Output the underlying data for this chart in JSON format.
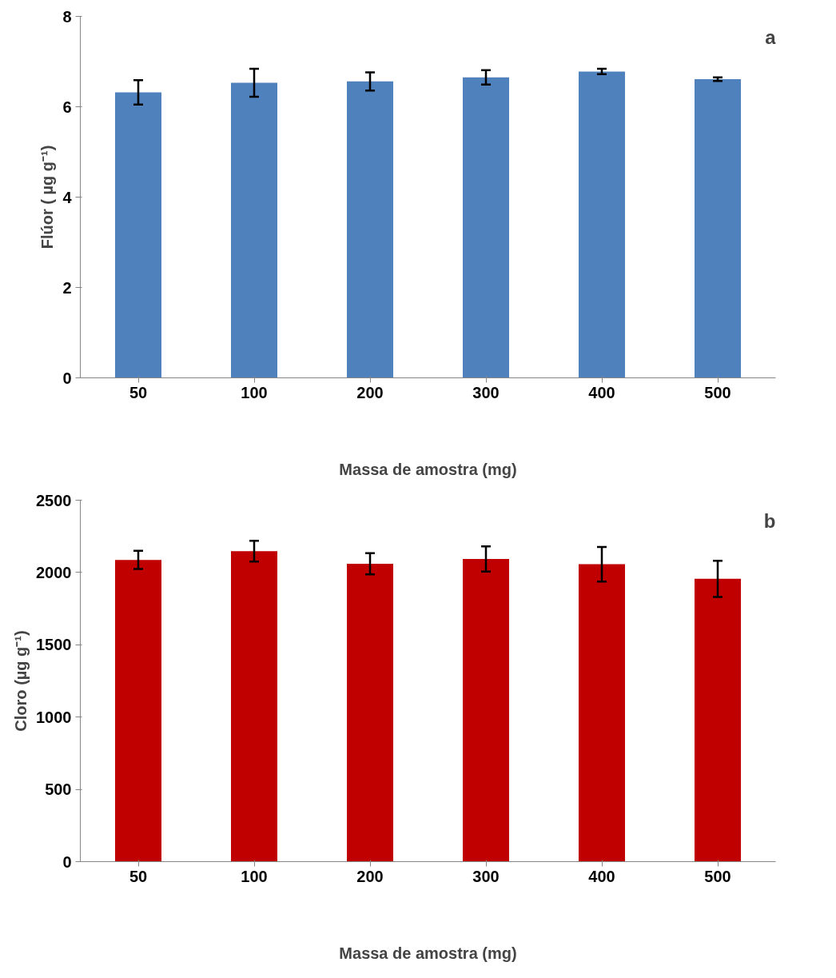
{
  "chart_data": [
    {
      "type": "bar",
      "xlabel": "Massa de amostra (mg)",
      "ylabel": "Flúor ( µg g⁻¹)",
      "annotations": [
        "a"
      ],
      "categories": [
        "50",
        "100",
        "200",
        "300",
        "400",
        "500"
      ],
      "values": [
        6.32,
        6.53,
        6.56,
        6.65,
        6.78,
        6.61
      ],
      "errors": [
        0.27,
        0.31,
        0.2,
        0.16,
        0.06,
        0.04
      ],
      "color": "#4f81bd",
      "ylim": [
        0,
        8
      ],
      "yticks": [
        0,
        2,
        4,
        6,
        8
      ],
      "grid": false
    },
    {
      "type": "bar",
      "xlabel": "Massa de amostra (mg)",
      "ylabel": "Cloro (µg g⁻¹)",
      "annotations": [
        "b"
      ],
      "categories": [
        "50",
        "100",
        "200",
        "300",
        "400",
        "500"
      ],
      "values": [
        2087,
        2147,
        2060,
        2093,
        2057,
        1956
      ],
      "errors": [
        63,
        72,
        73,
        87,
        120,
        125
      ],
      "color": "#c00000",
      "ylim": [
        0,
        2500
      ],
      "yticks": [
        0,
        500,
        1000,
        1500,
        2000,
        2500
      ],
      "grid": false
    }
  ]
}
